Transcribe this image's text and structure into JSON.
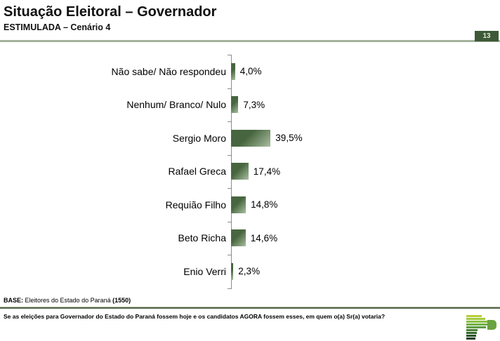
{
  "header": {
    "title": "Situação Eleitoral – Governador",
    "subtitle": "ESTIMULADA – Cenário 4",
    "page_number": "13"
  },
  "chart_data": {
    "type": "bar",
    "orientation": "horizontal",
    "title": "Situação Eleitoral – Governador",
    "subtitle": "ESTIMULADA – Cenário 4",
    "categories": [
      "Não sabe/ Não respondeu",
      "Nenhum/ Branco/ Nulo",
      "Sergio Moro",
      "Rafael Greca",
      "Requião Filho",
      "Beto Richa",
      "Enio Verri"
    ],
    "values": [
      4.0,
      7.3,
      39.5,
      17.4,
      14.8,
      14.6,
      2.3
    ],
    "value_labels": [
      "4,0%",
      "7,3%",
      "39,5%",
      "17,4%",
      "14,8%",
      "14,6%",
      "2,3%"
    ],
    "unit": "%",
    "xlim": [
      0,
      40
    ],
    "grid": false,
    "legend": false,
    "bar_color_dark": "#47663f",
    "bar_color_light": "#aabfa1",
    "axis_color": "#8c8c8c"
  },
  "footer": {
    "base_label": "BASE:",
    "base_text": " Eleitores do Estado do Paraná ",
    "base_count": "(1550)",
    "question": "Se as eleições para Governador do Estado do Paraná fossem hoje e os candidatos AGORA fossem esses, em quem o(a) Sr(a) votaria?"
  },
  "logo": {
    "name": "parana-pesquisas-logo",
    "bowl_color": "#6aa33f",
    "stripes": [
      {
        "w": 22,
        "color": "#b9cc3b"
      },
      {
        "w": 27,
        "color": "#a4c93f"
      },
      {
        "w": 31,
        "color": "#8cc044"
      },
      {
        "w": 33,
        "color": "#72b046"
      },
      {
        "w": 28,
        "color": "#5d9c41"
      },
      {
        "w": 16,
        "color": "#4a8037"
      },
      {
        "w": 15,
        "color": "#38672e"
      },
      {
        "w": 14,
        "color": "#295226"
      },
      {
        "w": 13,
        "color": "#1b3d1e"
      }
    ]
  }
}
